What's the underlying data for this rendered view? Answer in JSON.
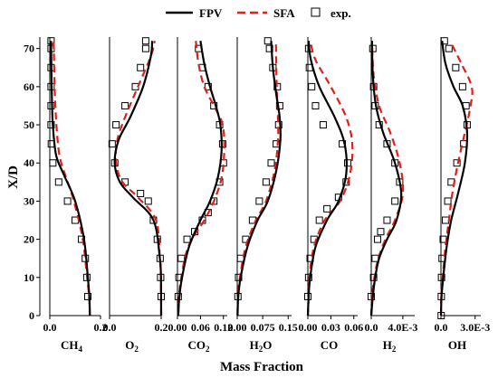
{
  "chart_data": {
    "type": "line",
    "ylabel": "X/D",
    "xlabel": "Mass Fraction",
    "ylim": [
      0,
      73
    ],
    "y_ticks": [
      0,
      10,
      20,
      30,
      40,
      50,
      60,
      70
    ],
    "y_tick_labels": [
      "0",
      "10",
      "20",
      "30",
      "40",
      "50",
      "60",
      "70"
    ],
    "legend": {
      "placement": "top",
      "entries": [
        {
          "label": "FPV",
          "style": "solid",
          "color": "#000000"
        },
        {
          "label": "SFA",
          "style": "dashed",
          "color": "#e0201b"
        },
        {
          "label": "exp.",
          "style": "square-marker",
          "color": "#000000"
        }
      ]
    },
    "panels": [
      {
        "species": "CH",
        "subscript": "4",
        "xlim": [
          0,
          0.2
        ],
        "x_ticks": [
          0,
          0.2
        ],
        "x_tick_labels": [
          "0.0",
          "0.2"
        ],
        "fpv": {
          "x": [
            0.158,
            0.156,
            0.15,
            0.135,
            0.1,
            0.055,
            0.025,
            0.012,
            0.008,
            0.006,
            0.005
          ],
          "y": [
            0,
            5,
            10,
            20,
            30,
            37,
            42,
            50,
            58,
            66,
            72
          ]
        },
        "sfa": {
          "x": [
            0.158,
            0.155,
            0.147,
            0.13,
            0.095,
            0.06,
            0.038,
            0.026,
            0.02,
            0.017,
            0.015
          ],
          "y": [
            0,
            5,
            10,
            20,
            30,
            37,
            42,
            50,
            58,
            66,
            72
          ]
        },
        "exp": {
          "x": [
            0.15,
            0.146,
            0.14,
            0.125,
            0.1,
            0.07,
            0.035,
            0.012,
            0.006,
            0.005,
            0.005,
            0.005,
            0.005,
            0.005,
            0.005
          ],
          "y": [
            5,
            10,
            15,
            20,
            25,
            30,
            35,
            40,
            45,
            50,
            55,
            60,
            65,
            70,
            72
          ]
        }
      },
      {
        "species": "O",
        "subscript": "2",
        "xlim": [
          0,
          0.2
        ],
        "x_ticks": [
          0,
          0.2
        ],
        "x_tick_labels": [
          "0.0",
          "0.2"
        ],
        "fpv": {
          "x": [
            0.2,
            0.199,
            0.195,
            0.17,
            0.09,
            0.04,
            0.02,
            0.035,
            0.08,
            0.13,
            0.16,
            0.165
          ],
          "y": [
            0,
            10,
            15,
            25,
            31,
            35,
            40,
            46,
            52,
            60,
            68,
            72
          ]
        },
        "sfa": {
          "x": [
            0.2,
            0.199,
            0.195,
            0.18,
            0.11,
            0.05,
            0.025,
            0.03,
            0.06,
            0.11,
            0.16,
            0.175
          ],
          "y": [
            0,
            10,
            15,
            25,
            31,
            35,
            40,
            46,
            52,
            60,
            68,
            72
          ]
        },
        "exp": {
          "x": [
            0.2,
            0.198,
            0.196,
            0.185,
            0.17,
            0.15,
            0.12,
            0.06,
            0.02,
            0.01,
            0.025,
            0.06,
            0.1,
            0.12,
            0.14,
            0.14
          ],
          "y": [
            5,
            10,
            15,
            20,
            25,
            30,
            32,
            35,
            40,
            45,
            50,
            55,
            60,
            65,
            70,
            72
          ]
        }
      },
      {
        "species": "CO",
        "subscript": "2",
        "xlim": [
          0,
          0.13
        ],
        "x_ticks": [
          0,
          0.06,
          0.12
        ],
        "x_tick_labels": [
          "0.00",
          "0.06",
          "0.12"
        ],
        "fpv": {
          "x": [
            0.002,
            0.005,
            0.012,
            0.03,
            0.06,
            0.085,
            0.105,
            0.115,
            0.112,
            0.1,
            0.085,
            0.07,
            0.06
          ],
          "y": [
            0,
            5,
            10,
            18,
            25,
            30,
            36,
            43,
            50,
            55,
            60,
            66,
            72
          ]
        },
        "sfa": {
          "x": [
            0.002,
            0.004,
            0.01,
            0.028,
            0.07,
            0.095,
            0.115,
            0.122,
            0.118,
            0.095,
            0.07,
            0.055,
            0.048
          ],
          "y": [
            0,
            5,
            10,
            18,
            25,
            30,
            36,
            43,
            50,
            55,
            60,
            66,
            72
          ]
        },
        "exp": {
          "x": [
            0.002,
            0.004,
            0.01,
            0.025,
            0.045,
            0.065,
            0.08,
            0.095,
            0.11,
            0.12,
            0.118,
            0.11,
            0.095,
            0.08,
            0.065,
            0.055
          ],
          "y": [
            5,
            10,
            15,
            20,
            22,
            25,
            27,
            30,
            35,
            40,
            45,
            50,
            55,
            60,
            65,
            70
          ]
        }
      },
      {
        "species": "H",
        "subscript": "2",
        "species_suffix": "O",
        "xlim": [
          0,
          0.16
        ],
        "x_ticks": [
          0,
          0.075,
          0.15
        ],
        "x_tick_labels": [
          "0.00",
          "0.075",
          "0.15"
        ],
        "fpv": {
          "x": [
            0.001,
            0.003,
            0.01,
            0.03,
            0.06,
            0.09,
            0.115,
            0.127,
            0.125,
            0.115,
            0.105,
            0.1
          ],
          "y": [
            0,
            5,
            10,
            18,
            25,
            30,
            38,
            46,
            52,
            58,
            65,
            72
          ]
        },
        "sfa": {
          "x": [
            0.001,
            0.002,
            0.008,
            0.025,
            0.055,
            0.085,
            0.11,
            0.12,
            0.12,
            0.117,
            0.115,
            0.114
          ],
          "y": [
            0,
            5,
            10,
            18,
            25,
            30,
            38,
            46,
            52,
            58,
            65,
            72
          ]
        },
        "exp": {
          "x": [
            0.002,
            0.004,
            0.01,
            0.025,
            0.045,
            0.065,
            0.085,
            0.1,
            0.115,
            0.122,
            0.125,
            0.118,
            0.105,
            0.095,
            0.09
          ],
          "y": [
            5,
            10,
            15,
            20,
            25,
            30,
            35,
            40,
            45,
            50,
            55,
            60,
            65,
            70,
            72
          ]
        }
      },
      {
        "species": "CO",
        "subscript": "",
        "xlim": [
          0,
          0.065
        ],
        "x_ticks": [
          0,
          0.03,
          0.06
        ],
        "x_tick_labels": [
          "0.00",
          "0.03",
          "0.06"
        ],
        "fpv": {
          "x": [
            0.0,
            0.001,
            0.003,
            0.01,
            0.025,
            0.04,
            0.05,
            0.048,
            0.035,
            0.015,
            0.004,
            0.001
          ],
          "y": [
            0,
            5,
            10,
            18,
            25,
            30,
            37,
            45,
            52,
            60,
            67,
            72
          ]
        },
        "sfa": {
          "x": [
            0.0,
            0.001,
            0.002,
            0.008,
            0.022,
            0.042,
            0.055,
            0.058,
            0.05,
            0.03,
            0.01,
            0.003
          ],
          "y": [
            0,
            5,
            10,
            18,
            25,
            30,
            37,
            45,
            52,
            60,
            67,
            72
          ]
        },
        "exp": {
          "x": [
            0.0,
            0.001,
            0.003,
            0.008,
            0.015,
            0.025,
            0.04,
            0.05,
            0.052,
            0.045,
            0.02,
            0.01,
            0.005,
            0.002,
            0.001
          ],
          "y": [
            5,
            10,
            15,
            20,
            25,
            28,
            31,
            35,
            40,
            45,
            50,
            55,
            60,
            65,
            70
          ]
        }
      },
      {
        "species": "H",
        "subscript": "2",
        "xlim": [
          0,
          0.0055
        ],
        "x_ticks": [
          0,
          0.004
        ],
        "x_tick_labels": [
          "0.0",
          "4.0E-3"
        ],
        "fpv": {
          "x": [
            0.0,
            0.0002,
            0.0005,
            0.001,
            0.002,
            0.0032,
            0.0038,
            0.003,
            0.0015,
            0.0006,
            0.0002,
            0.0001
          ],
          "y": [
            0,
            5,
            10,
            15,
            20,
            25,
            32,
            40,
            48,
            55,
            63,
            72
          ]
        },
        "sfa": {
          "x": [
            0.0,
            0.0001,
            0.0004,
            0.0009,
            0.0018,
            0.003,
            0.004,
            0.0036,
            0.0024,
            0.001,
            0.0003,
            0.0001
          ],
          "y": [
            0,
            5,
            10,
            15,
            20,
            25,
            32,
            40,
            48,
            55,
            63,
            72
          ]
        },
        "exp": {
          "x": [
            0.0,
            0.0003,
            0.0005,
            0.0008,
            0.0012,
            0.002,
            0.003,
            0.0036,
            0.003,
            0.002,
            0.001,
            0.0005,
            0.0003,
            0.0002
          ],
          "y": [
            5,
            10,
            15,
            20,
            22,
            25,
            30,
            35,
            40,
            45,
            50,
            55,
            60,
            70
          ]
        }
      },
      {
        "species": "OH",
        "subscript": "",
        "xlim": [
          0,
          0.0035
        ],
        "x_ticks": [
          0,
          0.003
        ],
        "x_tick_labels": [
          "0.0",
          "3.0E-3"
        ],
        "fpv": {
          "x": [
            0.0,
            5e-05,
            0.0002,
            0.0005,
            0.0009,
            0.0015,
            0.0021,
            0.0023,
            0.0019,
            0.0011,
            0.0004,
            0.0001
          ],
          "y": [
            0,
            5,
            10,
            18,
            25,
            32,
            40,
            48,
            55,
            60,
            66,
            72
          ]
        },
        "sfa": {
          "x": [
            0.0,
            3e-05,
            0.00015,
            0.0004,
            0.0007,
            0.001,
            0.0015,
            0.0021,
            0.0026,
            0.0027,
            0.0018,
            0.0008
          ],
          "y": [
            0,
            5,
            10,
            18,
            25,
            32,
            40,
            48,
            55,
            60,
            66,
            72
          ]
        },
        "exp": {
          "x": [
            2e-05,
            3e-05,
            5e-05,
            0.0001,
            0.0002,
            0.0004,
            0.0006,
            0.0009,
            0.0014,
            0.002,
            0.0023,
            0.0022,
            0.0019,
            0.0013,
            0.0007,
            0.0003
          ],
          "y": [
            0,
            5,
            10,
            15,
            20,
            25,
            30,
            35,
            40,
            45,
            50,
            55,
            60,
            65,
            70,
            72
          ]
        }
      }
    ]
  }
}
